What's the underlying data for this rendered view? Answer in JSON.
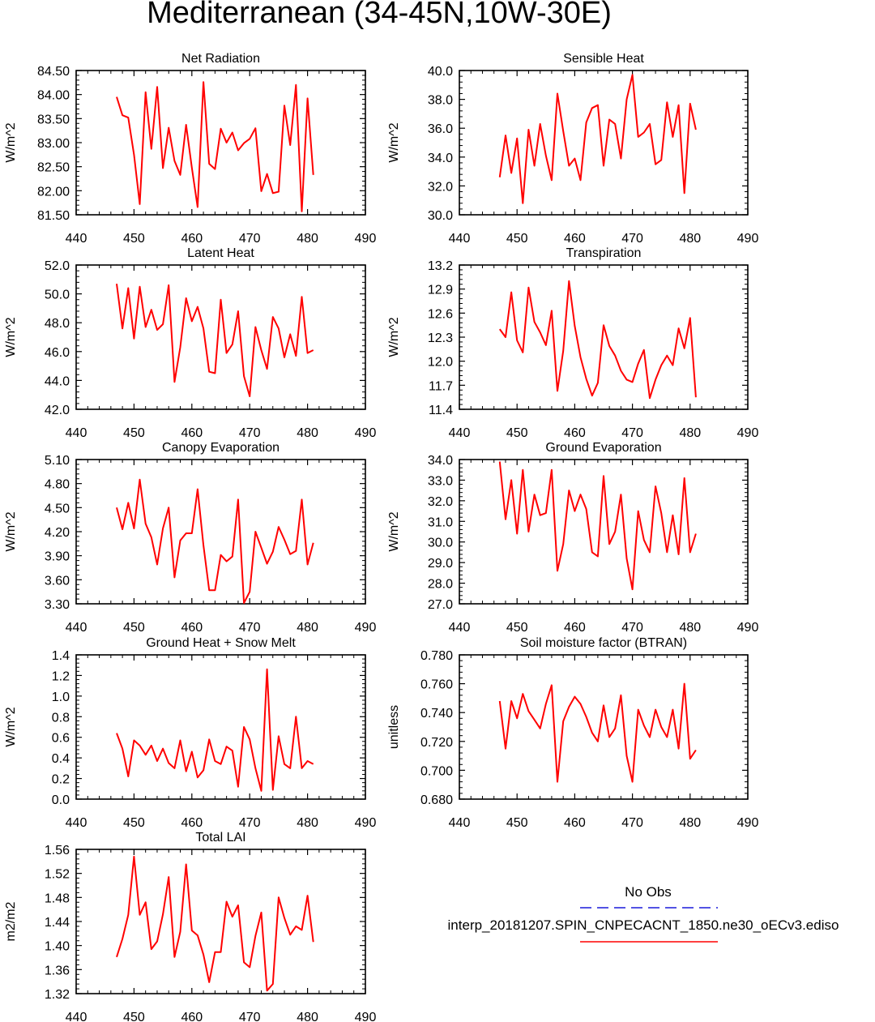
{
  "title": "Mediterranean (34-45N,10W-30E)",
  "legend": {
    "obs_label": "No Obs",
    "obs_color": "#1a1adb",
    "model_label": "interp_20181207.SPIN_CNPECACNT_1850.ne30_oECv3.ediso",
    "model_color": "#ff0000"
  },
  "x_ticks": [
    "440",
    "450",
    "460",
    "470",
    "480",
    "490"
  ],
  "chart_data": [
    {
      "type": "line",
      "title": "Net Radiation",
      "ylabel": "W/m^2",
      "xlim": [
        440,
        490
      ],
      "ylim": [
        81.5,
        84.5
      ],
      "yticks": [
        "81.50",
        "82.00",
        "82.50",
        "83.00",
        "83.50",
        "84.00",
        "84.50"
      ],
      "series": [
        {
          "name": "model",
          "color": "#ff0000",
          "x": [
            447,
            448,
            449,
            450,
            451,
            452,
            453,
            454,
            455,
            456,
            457,
            458,
            459,
            460,
            461,
            462,
            463,
            464,
            465,
            466,
            467,
            468,
            469,
            470,
            471,
            472,
            473,
            474,
            475,
            476,
            477,
            478,
            479,
            480,
            481
          ],
          "values": [
            83.95,
            83.57,
            83.52,
            82.75,
            81.72,
            84.05,
            82.87,
            84.16,
            82.47,
            83.31,
            82.62,
            82.33,
            83.37,
            82.48,
            81.66,
            84.26,
            82.56,
            82.45,
            83.29,
            83.0,
            83.21,
            82.84,
            82.99,
            83.08,
            83.3,
            81.99,
            82.35,
            81.95,
            81.98,
            83.77,
            82.95,
            84.2,
            81.57,
            83.92,
            82.33
          ]
        }
      ]
    },
    {
      "type": "line",
      "title": "Sensible Heat",
      "ylabel": "W/m^2",
      "xlim": [
        440,
        490
      ],
      "ylim": [
        30.0,
        40.0
      ],
      "yticks": [
        "30.0",
        "32.0",
        "34.0",
        "36.0",
        "38.0",
        "40.0"
      ],
      "series": [
        {
          "name": "model",
          "color": "#ff0000",
          "x": [
            447,
            448,
            449,
            450,
            451,
            452,
            453,
            454,
            455,
            456,
            457,
            458,
            459,
            460,
            461,
            462,
            463,
            464,
            465,
            466,
            467,
            468,
            469,
            470,
            471,
            472,
            473,
            474,
            475,
            476,
            477,
            478,
            479,
            480,
            481
          ],
          "values": [
            32.6,
            35.5,
            32.9,
            35.3,
            30.8,
            35.9,
            33.4,
            36.3,
            34.1,
            32.4,
            38.4,
            35.8,
            33.4,
            33.9,
            32.4,
            36.4,
            37.4,
            37.6,
            33.4,
            36.6,
            36.3,
            33.9,
            38.0,
            39.7,
            35.4,
            35.7,
            36.3,
            33.5,
            33.8,
            37.8,
            35.4,
            37.6,
            31.5,
            37.7,
            35.9
          ]
        }
      ]
    },
    {
      "type": "line",
      "title": "Latent Heat",
      "ylabel": "W/m^2",
      "xlim": [
        440,
        490
      ],
      "ylim": [
        42.0,
        52.0
      ],
      "yticks": [
        "42.0",
        "44.0",
        "46.0",
        "48.0",
        "50.0",
        "52.0"
      ],
      "series": [
        {
          "name": "model",
          "color": "#ff0000",
          "x": [
            447,
            448,
            449,
            450,
            451,
            452,
            453,
            454,
            455,
            456,
            457,
            458,
            459,
            460,
            461,
            462,
            463,
            464,
            465,
            466,
            467,
            468,
            469,
            470,
            471,
            472,
            473,
            474,
            475,
            476,
            477,
            478,
            479,
            480,
            481
          ],
          "values": [
            50.7,
            47.6,
            50.4,
            46.9,
            50.5,
            47.7,
            48.9,
            47.5,
            47.9,
            50.6,
            43.9,
            46.3,
            49.7,
            48.1,
            49.1,
            47.6,
            44.6,
            44.5,
            49.6,
            45.9,
            46.5,
            48.8,
            44.3,
            42.9,
            47.7,
            46.1,
            44.8,
            48.4,
            47.6,
            45.6,
            47.2,
            45.7,
            49.8,
            45.9,
            46.1
          ]
        }
      ]
    },
    {
      "type": "line",
      "title": "Transpiration",
      "ylabel": "W/m^2",
      "xlim": [
        440,
        490
      ],
      "ylim": [
        11.4,
        13.2
      ],
      "yticks": [
        "11.4",
        "11.7",
        "12.0",
        "12.3",
        "12.6",
        "12.9",
        "13.2"
      ],
      "series": [
        {
          "name": "model",
          "color": "#ff0000",
          "x": [
            447,
            448,
            449,
            450,
            451,
            452,
            453,
            454,
            455,
            456,
            457,
            458,
            459,
            460,
            461,
            462,
            463,
            464,
            465,
            466,
            467,
            468,
            469,
            470,
            471,
            472,
            473,
            474,
            475,
            476,
            477,
            478,
            479,
            480,
            481
          ],
          "values": [
            12.4,
            12.3,
            12.86,
            12.26,
            12.11,
            12.92,
            12.49,
            12.36,
            12.2,
            12.63,
            11.63,
            12.13,
            13.0,
            12.44,
            12.05,
            11.78,
            11.57,
            11.73,
            12.45,
            12.19,
            12.07,
            11.88,
            11.77,
            11.74,
            11.97,
            12.14,
            11.54,
            11.77,
            11.95,
            12.07,
            11.95,
            12.41,
            12.16,
            12.54,
            11.55
          ]
        }
      ]
    },
    {
      "type": "line",
      "title": "Canopy Evaporation",
      "ylabel": "W/m^2",
      "xlim": [
        440,
        490
      ],
      "ylim": [
        3.3,
        5.1
      ],
      "yticks": [
        "3.30",
        "3.60",
        "3.90",
        "4.20",
        "4.50",
        "4.80",
        "5.10"
      ],
      "series": [
        {
          "name": "model",
          "color": "#ff0000",
          "x": [
            447,
            448,
            449,
            450,
            451,
            452,
            453,
            454,
            455,
            456,
            457,
            458,
            459,
            460,
            461,
            462,
            463,
            464,
            465,
            466,
            467,
            468,
            469,
            470,
            471,
            472,
            473,
            474,
            475,
            476,
            477,
            478,
            479,
            480,
            481
          ],
          "values": [
            4.5,
            4.23,
            4.56,
            4.24,
            4.85,
            4.3,
            4.13,
            3.79,
            4.24,
            4.5,
            3.63,
            4.09,
            4.18,
            4.18,
            4.73,
            4.03,
            3.47,
            3.47,
            3.91,
            3.83,
            3.89,
            4.6,
            3.31,
            3.45,
            4.2,
            4.0,
            3.8,
            3.95,
            4.26,
            4.1,
            3.92,
            3.96,
            4.6,
            3.79,
            4.06
          ]
        }
      ]
    },
    {
      "type": "line",
      "title": "Ground Evaporation",
      "ylabel": "W/m^2",
      "xlim": [
        440,
        490
      ],
      "ylim": [
        27.0,
        34.0
      ],
      "yticks": [
        "27.0",
        "28.0",
        "29.0",
        "30.0",
        "31.0",
        "32.0",
        "33.0",
        "34.0"
      ],
      "series": [
        {
          "name": "model",
          "color": "#ff0000",
          "x": [
            447,
            448,
            449,
            450,
            451,
            452,
            453,
            454,
            455,
            456,
            457,
            458,
            459,
            460,
            461,
            462,
            463,
            464,
            465,
            466,
            467,
            468,
            469,
            470,
            471,
            472,
            473,
            474,
            475,
            476,
            477,
            478,
            479,
            480,
            481
          ],
          "values": [
            33.9,
            31.1,
            33.0,
            30.4,
            33.5,
            30.5,
            32.3,
            31.3,
            31.4,
            33.5,
            28.6,
            29.9,
            32.5,
            31.5,
            32.3,
            31.6,
            29.5,
            29.3,
            33.2,
            29.9,
            30.5,
            32.3,
            29.2,
            27.7,
            31.5,
            30.1,
            29.5,
            32.7,
            31.4,
            29.5,
            31.3,
            29.4,
            33.1,
            29.5,
            30.4
          ]
        }
      ]
    },
    {
      "type": "line",
      "title": "Ground Heat + Snow Melt",
      "ylabel": "W/m^2",
      "xlim": [
        440,
        490
      ],
      "ylim": [
        0.0,
        1.4
      ],
      "yticks": [
        "0.0",
        "0.2",
        "0.4",
        "0.6",
        "0.8",
        "1.0",
        "1.2",
        "1.4"
      ],
      "series": [
        {
          "name": "model",
          "color": "#ff0000",
          "x": [
            447,
            448,
            449,
            450,
            451,
            452,
            453,
            454,
            455,
            456,
            457,
            458,
            459,
            460,
            461,
            462,
            463,
            464,
            465,
            466,
            467,
            468,
            469,
            470,
            471,
            472,
            473,
            474,
            475,
            476,
            477,
            478,
            479,
            480,
            481
          ],
          "values": [
            0.64,
            0.49,
            0.22,
            0.57,
            0.52,
            0.43,
            0.52,
            0.37,
            0.49,
            0.35,
            0.3,
            0.57,
            0.27,
            0.46,
            0.21,
            0.28,
            0.58,
            0.37,
            0.34,
            0.51,
            0.47,
            0.12,
            0.7,
            0.58,
            0.3,
            0.08,
            1.26,
            0.09,
            0.61,
            0.34,
            0.3,
            0.8,
            0.3,
            0.37,
            0.34
          ]
        }
      ]
    },
    {
      "type": "line",
      "title": "Soil moisture factor (BTRAN)",
      "ylabel": "unitless",
      "xlim": [
        440,
        490
      ],
      "ylim": [
        0.68,
        0.78
      ],
      "yticks": [
        "0.680",
        "0.700",
        "0.720",
        "0.740",
        "0.760",
        "0.780"
      ],
      "series": [
        {
          "name": "model",
          "color": "#ff0000",
          "x": [
            447,
            448,
            449,
            450,
            451,
            452,
            453,
            454,
            455,
            456,
            457,
            458,
            459,
            460,
            461,
            462,
            463,
            464,
            465,
            466,
            467,
            468,
            469,
            470,
            471,
            472,
            473,
            474,
            475,
            476,
            477,
            478,
            479,
            480,
            481
          ],
          "values": [
            0.748,
            0.715,
            0.748,
            0.736,
            0.753,
            0.741,
            0.735,
            0.729,
            0.746,
            0.759,
            0.692,
            0.734,
            0.744,
            0.751,
            0.746,
            0.737,
            0.726,
            0.72,
            0.745,
            0.723,
            0.729,
            0.752,
            0.71,
            0.692,
            0.742,
            0.731,
            0.723,
            0.742,
            0.73,
            0.723,
            0.742,
            0.715,
            0.76,
            0.708,
            0.714
          ]
        }
      ]
    },
    {
      "type": "line",
      "title": "Total LAI",
      "ylabel": "m2/m2",
      "xlim": [
        440,
        490
      ],
      "ylim": [
        1.32,
        1.56
      ],
      "yticks": [
        "1.32",
        "1.36",
        "1.40",
        "1.44",
        "1.48",
        "1.52",
        "1.56"
      ],
      "series": [
        {
          "name": "model",
          "color": "#ff0000",
          "x": [
            447,
            448,
            449,
            450,
            451,
            452,
            453,
            454,
            455,
            456,
            457,
            458,
            459,
            460,
            461,
            462,
            463,
            464,
            465,
            466,
            467,
            468,
            469,
            470,
            471,
            472,
            473,
            474,
            475,
            476,
            477,
            478,
            479,
            480,
            481
          ],
          "values": [
            1.381,
            1.411,
            1.451,
            1.548,
            1.451,
            1.472,
            1.394,
            1.407,
            1.452,
            1.514,
            1.381,
            1.423,
            1.535,
            1.425,
            1.417,
            1.385,
            1.339,
            1.389,
            1.389,
            1.473,
            1.448,
            1.467,
            1.372,
            1.364,
            1.416,
            1.455,
            1.325,
            1.336,
            1.48,
            1.446,
            1.418,
            1.432,
            1.426,
            1.483,
            1.406
          ]
        }
      ]
    }
  ]
}
